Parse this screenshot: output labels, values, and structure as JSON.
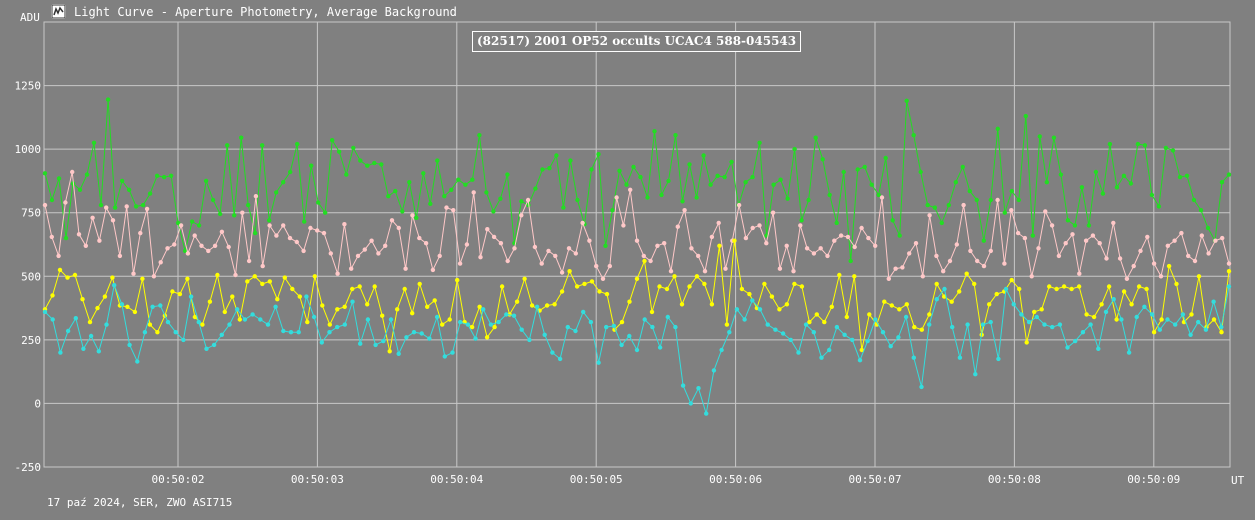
{
  "window": {
    "title": "Light Curve - Aperture Photometry, Average Background",
    "icon": "chart-icon"
  },
  "footer_text": "17 paź 2024, SER, ZWO ASI715",
  "chart_data": {
    "type": "line",
    "title": "(82517) 2001 OP52 occults UCAC4 588-045543",
    "ylabel": "ADU",
    "xlabel": "UT",
    "ylim": [
      -250,
      1500
    ],
    "yticks": [
      -250,
      0,
      250,
      500,
      750,
      1000,
      1250
    ],
    "xticks": [
      "00:50:02",
      "00:50:03",
      "00:50:04",
      "00:50:05",
      "00:50:06",
      "00:50:07",
      "00:50:08",
      "00:50:09"
    ],
    "x_start_tick": 1,
    "x_step": 0.05,
    "grid": true,
    "background_color": "#808080",
    "series": [
      {
        "color": "#22dd22",
        "values": [
          905,
          800,
          885,
          650,
          865,
          840,
          900,
          1025,
          780,
          1195,
          770,
          875,
          840,
          775,
          780,
          825,
          895,
          890,
          895,
          710,
          600,
          715,
          700,
          875,
          800,
          745,
          1015,
          740,
          1045,
          780,
          670,
          1015,
          720,
          830,
          870,
          910,
          1020,
          715,
          935,
          790,
          750,
          1035,
          990,
          900,
          1005,
          955,
          935,
          945,
          940,
          815,
          835,
          755,
          870,
          730,
          905,
          785,
          955,
          815,
          840,
          880,
          860,
          880,
          1055,
          830,
          755,
          805,
          900,
          630,
          795,
          780,
          845,
          920,
          925,
          975,
          770,
          955,
          800,
          705,
          920,
          980,
          620,
          760,
          915,
          860,
          930,
          890,
          810,
          1070,
          820,
          875,
          1055,
          795,
          940,
          810,
          975,
          860,
          895,
          890,
          950,
          780,
          870,
          890,
          1025,
          660,
          860,
          880,
          805,
          1000,
          720,
          800,
          1045,
          960,
          820,
          710,
          910,
          560,
          920,
          930,
          860,
          820,
          965,
          720,
          660,
          1190,
          1055,
          910,
          780,
          770,
          710,
          780,
          870,
          930,
          835,
          800,
          640,
          800,
          1080,
          750,
          835,
          800,
          1130,
          660,
          1050,
          870,
          1045,
          900,
          720,
          700,
          850,
          700,
          910,
          825,
          1020,
          850,
          895,
          865,
          1020,
          1015,
          820,
          775,
          1005,
          995,
          890,
          895,
          800,
          760,
          690,
          640,
          870,
          900
        ]
      },
      {
        "color": "#ffc8c8",
        "values": [
          780,
          655,
          580,
          790,
          910,
          665,
          620,
          730,
          640,
          770,
          720,
          580,
          775,
          510,
          670,
          765,
          500,
          555,
          610,
          625,
          700,
          590,
          660,
          620,
          600,
          620,
          675,
          615,
          505,
          750,
          560,
          815,
          540,
          700,
          660,
          700,
          650,
          635,
          600,
          690,
          680,
          670,
          590,
          510,
          705,
          530,
          580,
          605,
          640,
          590,
          620,
          720,
          690,
          530,
          740,
          650,
          630,
          525,
          580,
          770,
          760,
          550,
          625,
          830,
          575,
          685,
          655,
          630,
          560,
          610,
          740,
          800,
          615,
          550,
          600,
          580,
          515,
          610,
          590,
          710,
          640,
          540,
          490,
          540,
          810,
          700,
          840,
          640,
          580,
          560,
          620,
          630,
          520,
          695,
          760,
          610,
          580,
          520,
          655,
          710,
          530,
          640,
          780,
          650,
          690,
          700,
          630,
          750,
          530,
          620,
          520,
          700,
          610,
          590,
          610,
          580,
          640,
          660,
          655,
          615,
          690,
          650,
          620,
          810,
          490,
          530,
          535,
          590,
          630,
          500,
          740,
          580,
          520,
          560,
          625,
          780,
          600,
          560,
          540,
          600,
          800,
          550,
          760,
          670,
          650,
          500,
          610,
          755,
          700,
          580,
          630,
          665,
          510,
          640,
          660,
          630,
          570,
          710,
          570,
          490,
          540,
          600,
          655,
          550,
          500,
          620,
          640,
          670,
          580,
          560,
          660,
          590,
          640,
          650,
          550
        ]
      },
      {
        "color": "#ffff00",
        "values": [
          370,
          425,
          525,
          495,
          505,
          410,
          320,
          375,
          420,
          495,
          385,
          380,
          360,
          490,
          310,
          280,
          345,
          440,
          430,
          490,
          340,
          310,
          400,
          505,
          360,
          420,
          330,
          480,
          500,
          470,
          480,
          410,
          495,
          450,
          420,
          320,
          500,
          385,
          310,
          370,
          380,
          450,
          460,
          390,
          460,
          345,
          205,
          370,
          450,
          355,
          470,
          380,
          405,
          310,
          330,
          485,
          320,
          300,
          380,
          260,
          300,
          460,
          350,
          400,
          490,
          385,
          365,
          385,
          390,
          440,
          520,
          460,
          470,
          480,
          440,
          430,
          290,
          320,
          400,
          490,
          560,
          360,
          460,
          450,
          500,
          390,
          460,
          500,
          470,
          390,
          620,
          310,
          640,
          450,
          430,
          375,
          470,
          420,
          370,
          390,
          470,
          460,
          320,
          350,
          320,
          380,
          505,
          340,
          500,
          210,
          350,
          310,
          400,
          385,
          370,
          390,
          300,
          290,
          350,
          470,
          420,
          400,
          440,
          510,
          470,
          270,
          390,
          430,
          440,
          485,
          450,
          240,
          360,
          370,
          460,
          450,
          460,
          450,
          460,
          350,
          340,
          390,
          460,
          330,
          440,
          390,
          460,
          450,
          280,
          330,
          540,
          470,
          320,
          350,
          500,
          300,
          330,
          280,
          520
        ]
      },
      {
        "color": "#33dddd",
        "values": [
          360,
          330,
          200,
          285,
          335,
          215,
          265,
          205,
          310,
          465,
          390,
          230,
          165,
          280,
          380,
          385,
          320,
          280,
          250,
          420,
          320,
          215,
          230,
          270,
          310,
          370,
          330,
          350,
          330,
          310,
          380,
          285,
          280,
          280,
          420,
          340,
          240,
          280,
          300,
          310,
          400,
          235,
          330,
          230,
          245,
          330,
          195,
          260,
          280,
          275,
          255,
          340,
          185,
          200,
          320,
          310,
          255,
          370,
          310,
          320,
          350,
          345,
          290,
          250,
          380,
          270,
          200,
          175,
          300,
          285,
          360,
          320,
          160,
          300,
          305,
          230,
          265,
          210,
          330,
          300,
          220,
          340,
          300,
          70,
          0,
          60,
          -40,
          130,
          210,
          280,
          370,
          330,
          405,
          370,
          310,
          290,
          275,
          250,
          200,
          310,
          280,
          180,
          210,
          300,
          270,
          250,
          170,
          245,
          330,
          280,
          225,
          260,
          340,
          180,
          65,
          310,
          410,
          450,
          300,
          180,
          310,
          115,
          310,
          320,
          175,
          450,
          390,
          350,
          320,
          340,
          310,
          300,
          310,
          220,
          245,
          280,
          310,
          215,
          360,
          410,
          330,
          200,
          340,
          380,
          350,
          290,
          330,
          310,
          350,
          270,
          320,
          290,
          400,
          300,
          460
        ]
      }
    ]
  }
}
